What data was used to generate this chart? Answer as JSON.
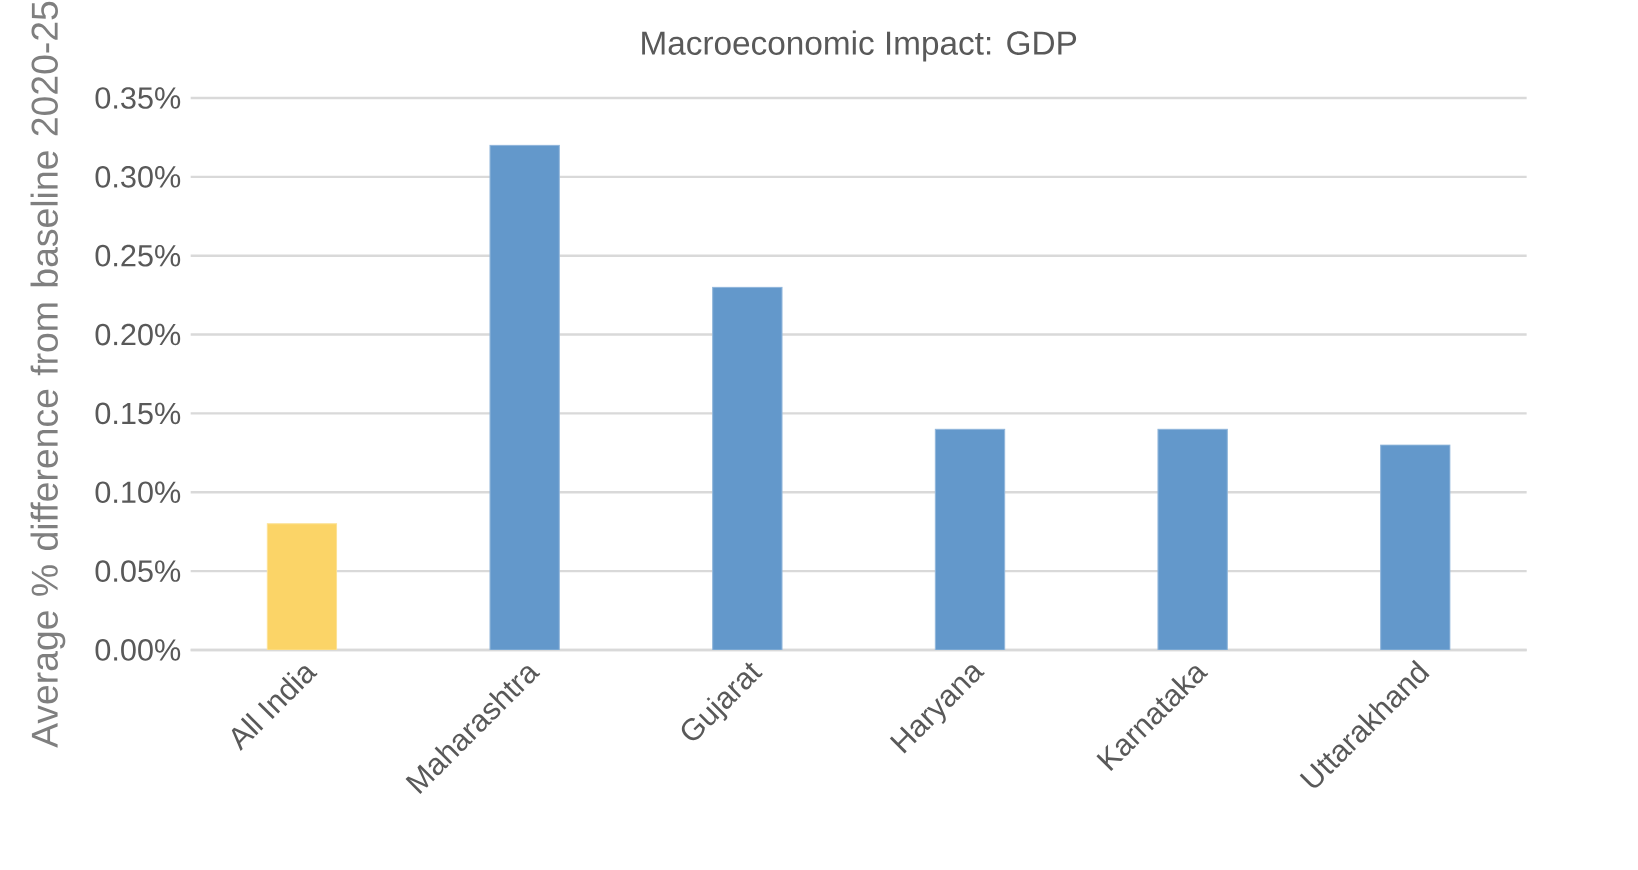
{
  "chart_data": {
    "type": "bar",
    "title": "Macroeconomic Impact: GDP",
    "ylabel": "Average % difference from baseline 2020-25",
    "categories": [
      "All India",
      "Maharashtra",
      "Gujarat",
      "Haryana",
      "Karnataka",
      "Uttarakhand"
    ],
    "values": [
      0.08,
      0.32,
      0.23,
      0.14,
      0.14,
      0.13
    ],
    "colors": [
      "#fbd467",
      "#6398cb",
      "#6398cb",
      "#6398cb",
      "#6398cb",
      "#6398cb"
    ],
    "ylim": [
      0,
      0.35
    ],
    "yticks": [
      {
        "value": 0,
        "label": "0.00%"
      },
      {
        "value": 0.05,
        "label": "0.05%"
      },
      {
        "value": 0.1,
        "label": "0.10%"
      },
      {
        "value": 0.15,
        "label": "0.15%"
      },
      {
        "value": 0.2,
        "label": "0.20%"
      },
      {
        "value": 0.25,
        "label": "0.25%"
      },
      {
        "value": 0.3,
        "label": "0.30%"
      },
      {
        "value": 0.35,
        "label": "0.35%"
      }
    ],
    "grid": "y"
  }
}
